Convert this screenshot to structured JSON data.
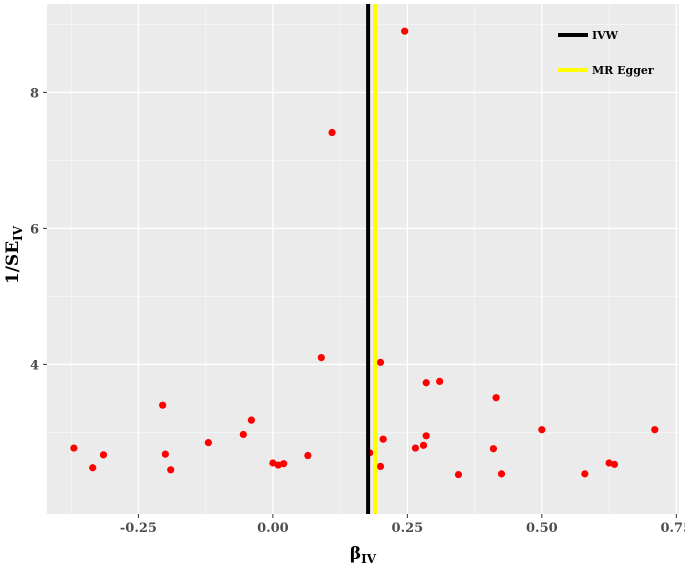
{
  "chart_data": {
    "type": "scatter",
    "title": "",
    "xlabel": {
      "main": "β",
      "sub": "IV"
    },
    "ylabel": {
      "main": "1/SE",
      "sub": "IV"
    },
    "xlim": [
      -0.42,
      0.755
    ],
    "ylim": [
      1.8,
      9.3
    ],
    "x_ticks": [
      -0.25,
      0.0,
      0.25,
      0.5,
      0.75
    ],
    "x_tick_labels": [
      "-0.25",
      "0.00",
      "0.25",
      "0.50",
      "0.75"
    ],
    "y_ticks": [
      4,
      6,
      8
    ],
    "y_tick_labels": [
      "4",
      "6",
      "8"
    ],
    "grid": true,
    "point_color": "#ff0000",
    "points": [
      {
        "x": -0.37,
        "y": 2.77
      },
      {
        "x": -0.335,
        "y": 2.48
      },
      {
        "x": -0.315,
        "y": 2.67
      },
      {
        "x": -0.205,
        "y": 3.4
      },
      {
        "x": -0.2,
        "y": 2.68
      },
      {
        "x": -0.19,
        "y": 2.45
      },
      {
        "x": -0.12,
        "y": 2.85
      },
      {
        "x": -0.055,
        "y": 2.97
      },
      {
        "x": -0.04,
        "y": 3.18
      },
      {
        "x": 0.0,
        "y": 2.55
      },
      {
        "x": 0.01,
        "y": 2.52
      },
      {
        "x": 0.02,
        "y": 2.54
      },
      {
        "x": 0.065,
        "y": 2.66
      },
      {
        "x": 0.09,
        "y": 4.1
      },
      {
        "x": 0.11,
        "y": 7.41
      },
      {
        "x": 0.18,
        "y": 2.7
      },
      {
        "x": 0.2,
        "y": 4.03
      },
      {
        "x": 0.2,
        "y": 2.5
      },
      {
        "x": 0.205,
        "y": 2.9
      },
      {
        "x": 0.245,
        "y": 8.9
      },
      {
        "x": 0.265,
        "y": 2.77
      },
      {
        "x": 0.28,
        "y": 2.81
      },
      {
        "x": 0.285,
        "y": 2.95
      },
      {
        "x": 0.285,
        "y": 3.73
      },
      {
        "x": 0.31,
        "y": 3.75
      },
      {
        "x": 0.345,
        "y": 2.38
      },
      {
        "x": 0.41,
        "y": 2.76
      },
      {
        "x": 0.415,
        "y": 3.51
      },
      {
        "x": 0.425,
        "y": 2.39
      },
      {
        "x": 0.5,
        "y": 3.04
      },
      {
        "x": 0.58,
        "y": 2.39
      },
      {
        "x": 0.625,
        "y": 2.55
      },
      {
        "x": 0.635,
        "y": 2.53
      },
      {
        "x": 0.71,
        "y": 3.04
      }
    ],
    "reference_lines": [
      {
        "name": "IVW",
        "x": 0.177,
        "color": "#000000"
      },
      {
        "name": "MR Egger",
        "x": 0.19,
        "color": "#ffff00"
      }
    ],
    "legend": {
      "position": "top-right",
      "items": [
        {
          "label": "IVW",
          "color": "#000000"
        },
        {
          "label": "MR Egger",
          "color": "#ffff00"
        }
      ]
    }
  }
}
